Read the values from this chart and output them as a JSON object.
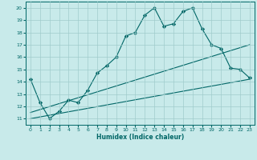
{
  "xlabel": "Humidex (Indice chaleur)",
  "bg_color": "#c8eaea",
  "line_color": "#006666",
  "grid_color": "#a0cccc",
  "xlim": [
    -0.5,
    23.5
  ],
  "ylim": [
    10.5,
    20.5
  ],
  "yticks": [
    11,
    12,
    13,
    14,
    15,
    16,
    17,
    18,
    19,
    20
  ],
  "xticks": [
    0,
    1,
    2,
    3,
    4,
    5,
    6,
    7,
    8,
    9,
    10,
    11,
    12,
    13,
    14,
    15,
    16,
    17,
    18,
    19,
    20,
    21,
    22,
    23
  ],
  "series": [
    {
      "x": [
        0,
        1,
        2,
        3,
        4,
        5,
        6,
        7,
        8,
        9,
        10,
        11,
        12,
        13,
        14,
        15,
        16,
        17,
        18,
        19,
        20,
        21,
        22,
        23
      ],
      "y": [
        14.2,
        12.3,
        11.0,
        11.6,
        12.5,
        12.3,
        13.3,
        14.7,
        15.3,
        16.0,
        17.7,
        18.0,
        19.4,
        20.0,
        18.5,
        18.7,
        19.7,
        20.0,
        18.3,
        17.0,
        16.7,
        15.1,
        15.0,
        14.3
      ],
      "marker": true
    },
    {
      "x": [
        0,
        23
      ],
      "y": [
        11.5,
        17.0
      ],
      "marker": false
    },
    {
      "x": [
        0,
        23
      ],
      "y": [
        11.0,
        14.2
      ],
      "marker": false
    }
  ]
}
